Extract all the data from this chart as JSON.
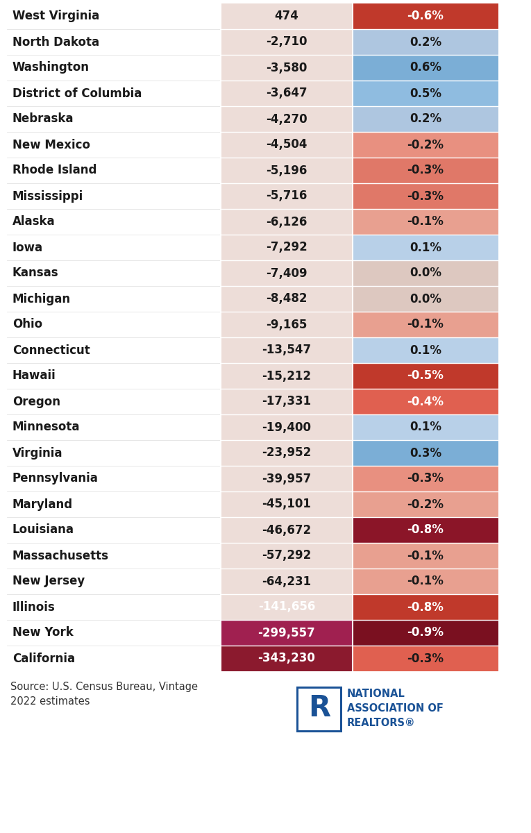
{
  "rows": [
    {
      "state": "West Virginia",
      "net_migration": "474",
      "pct": "-0.6%"
    },
    {
      "state": "North Dakota",
      "net_migration": "-2,710",
      "pct": "0.2%"
    },
    {
      "state": "Washington",
      "net_migration": "-3,580",
      "pct": "0.6%"
    },
    {
      "state": "District of Columbia",
      "net_migration": "-3,647",
      "pct": "0.5%"
    },
    {
      "state": "Nebraska",
      "net_migration": "-4,270",
      "pct": "0.2%"
    },
    {
      "state": "New Mexico",
      "net_migration": "-4,504",
      "pct": "-0.2%"
    },
    {
      "state": "Rhode Island",
      "net_migration": "-5,196",
      "pct": "-0.3%"
    },
    {
      "state": "Mississippi",
      "net_migration": "-5,716",
      "pct": "-0.3%"
    },
    {
      "state": "Alaska",
      "net_migration": "-6,126",
      "pct": "-0.1%"
    },
    {
      "state": "Iowa",
      "net_migration": "-7,292",
      "pct": "0.1%"
    },
    {
      "state": "Kansas",
      "net_migration": "-7,409",
      "pct": "0.0%"
    },
    {
      "state": "Michigan",
      "net_migration": "-8,482",
      "pct": "0.0%"
    },
    {
      "state": "Ohio",
      "net_migration": "-9,165",
      "pct": "-0.1%"
    },
    {
      "state": "Connecticut",
      "net_migration": "-13,547",
      "pct": "0.1%"
    },
    {
      "state": "Hawaii",
      "net_migration": "-15,212",
      "pct": "-0.5%"
    },
    {
      "state": "Oregon",
      "net_migration": "-17,331",
      "pct": "-0.4%"
    },
    {
      "state": "Minnesota",
      "net_migration": "-19,400",
      "pct": "0.1%"
    },
    {
      "state": "Virginia",
      "net_migration": "-23,952",
      "pct": "0.3%"
    },
    {
      "state": "Pennsylvania",
      "net_migration": "-39,957",
      "pct": "-0.3%"
    },
    {
      "state": "Maryland",
      "net_migration": "-45,101",
      "pct": "-0.2%"
    },
    {
      "state": "Louisiana",
      "net_migration": "-46,672",
      "pct": "-0.8%"
    },
    {
      "state": "Massachusetts",
      "net_migration": "-57,292",
      "pct": "-0.1%"
    },
    {
      "state": "New Jersey",
      "net_migration": "-64,231",
      "pct": "-0.1%"
    },
    {
      "state": "Illinois",
      "net_migration": "-141,656",
      "pct": "-0.8%"
    },
    {
      "state": "New York",
      "net_migration": "-299,557",
      "pct": "-0.9%"
    },
    {
      "state": "California",
      "net_migration": "-343,230",
      "pct": "-0.3%"
    }
  ],
  "state_bg": [
    "#ffffff",
    "#ffffff",
    "#ffffff",
    "#ffffff",
    "#ffffff",
    "#ffffff",
    "#ffffff",
    "#ffffff",
    "#ffffff",
    "#ffffff",
    "#ffffff",
    "#ffffff",
    "#ffffff",
    "#ffffff",
    "#ffffff",
    "#ffffff",
    "#ffffff",
    "#ffffff",
    "#ffffff",
    "#ffffff",
    "#ffffff",
    "#ffffff",
    "#ffffff",
    "#ffffff",
    "#ffffff",
    "#ffffff"
  ],
  "num_bg": [
    "#edddd8",
    "#edddd8",
    "#edddd8",
    "#edddd8",
    "#edddd8",
    "#edddd8",
    "#edddd8",
    "#edddd8",
    "#edddd8",
    "#edddd8",
    "#edddd8",
    "#edddd8",
    "#edddd8",
    "#edddd8",
    "#edddd8",
    "#edddd8",
    "#edddd8",
    "#edddd8",
    "#edddd8",
    "#edddd8",
    "#edddd8",
    "#edddd8",
    "#edddd8",
    "#edddd8",
    "#a02050",
    "#8b1a2e"
  ],
  "pct_bg": [
    "#c0392b",
    "#aec6e0",
    "#7baed6",
    "#8fbce0",
    "#aec6e0",
    "#e89080",
    "#e07868",
    "#e07868",
    "#e8a090",
    "#b8d0e8",
    "#ddc8c0",
    "#ddc8c0",
    "#e8a090",
    "#b8d0e8",
    "#c0392b",
    "#e06050",
    "#b8d0e8",
    "#7baed6",
    "#e89080",
    "#e8a090",
    "#8b1528",
    "#e8a090",
    "#e8a090",
    "#c0392b",
    "#7a1020",
    "#e06050"
  ],
  "pct_text_color": [
    "#ffffff",
    "#1a1a1a",
    "#1a1a1a",
    "#1a1a1a",
    "#1a1a1a",
    "#1a1a1a",
    "#1a1a1a",
    "#1a1a1a",
    "#1a1a1a",
    "#1a1a1a",
    "#1a1a1a",
    "#1a1a1a",
    "#1a1a1a",
    "#1a1a1a",
    "#ffffff",
    "#ffffff",
    "#1a1a1a",
    "#1a1a1a",
    "#1a1a1a",
    "#1a1a1a",
    "#ffffff",
    "#1a1a1a",
    "#1a1a1a",
    "#ffffff",
    "#ffffff",
    "#1a1a1a"
  ],
  "num_text_color": [
    "#1a1a1a",
    "#1a1a1a",
    "#1a1a1a",
    "#1a1a1a",
    "#1a1a1a",
    "#1a1a1a",
    "#1a1a1a",
    "#1a1a1a",
    "#1a1a1a",
    "#1a1a1a",
    "#1a1a1a",
    "#1a1a1a",
    "#1a1a1a",
    "#1a1a1a",
    "#1a1a1a",
    "#1a1a1a",
    "#1a1a1a",
    "#1a1a1a",
    "#1a1a1a",
    "#1a1a1a",
    "#1a1a1a",
    "#1a1a1a",
    "#1a1a1a",
    "#ffffff",
    "#ffffff",
    "#ffffff"
  ],
  "background_color": "#ffffff",
  "footer_text": "Source: U.S. Census Bureau, Vintage\n2022 estimates",
  "nar_text": "NATIONAL\nASSOCIATION OF\nREALTORS®"
}
